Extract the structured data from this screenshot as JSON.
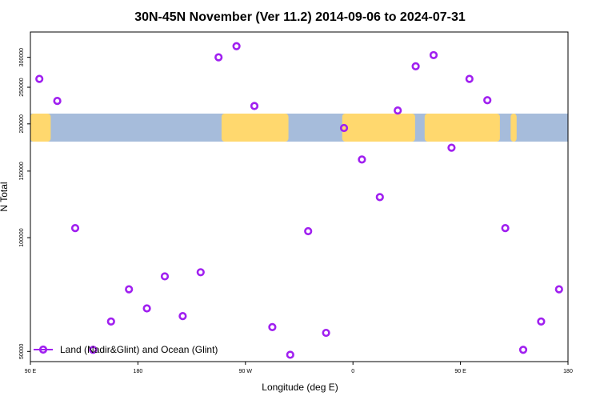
{
  "chart_data": {
    "type": "scatter",
    "title": "30N-45N November (Ver 11.2)   2014-09-06 to 2024-07-31",
    "xlabel": "Longitude (deg E)",
    "ylabel": "N Total",
    "x_ticks": [
      {
        "value": 90,
        "label": "90 E"
      },
      {
        "value": 180,
        "label": "180"
      },
      {
        "value": 270,
        "label": "90 W"
      },
      {
        "value": 360,
        "label": "0"
      },
      {
        "value": 450,
        "label": "90 E"
      },
      {
        "value": 540,
        "label": "180"
      }
    ],
    "xlim": [
      90,
      540
    ],
    "y_scale": "log",
    "y_ticks": [
      50000,
      100000,
      150000,
      200000,
      250000,
      300000
    ],
    "ylim": [
      47000,
      350000
    ],
    "legend": {
      "position": "bottom-left",
      "entries": [
        "Land (Nadir&Glint) and Ocean (Glint)"
      ]
    },
    "background": {
      "type": "world-map-band",
      "lat_range": "30N-45N",
      "land_color": "#ffd86e",
      "ocean_color": "#a6bcdb"
    },
    "colors": {
      "marker": "#a020f0"
    },
    "series": [
      {
        "name": "Land (Nadir&Glint) and Ocean (Glint)",
        "x": [
          97.5,
          112.5,
          127.5,
          142.5,
          157.5,
          172.5,
          187.5,
          202.5,
          217.5,
          232.5,
          247.5,
          262.5,
          277.5,
          292.5,
          307.5,
          322.5,
          337.5,
          352.5,
          367.5,
          382.5,
          397.5,
          412.5,
          427.5,
          442.5,
          457.5,
          472.5,
          487.5,
          502.5,
          517.5,
          532.5
        ],
        "y": [
          263000,
          230000,
          106000,
          50500,
          60000,
          73000,
          65000,
          79000,
          62000,
          81000,
          300000,
          321000,
          223000,
          58000,
          49000,
          104000,
          56000,
          195000,
          161000,
          128000,
          217000,
          284000,
          304000,
          173000,
          263000,
          231000,
          106000,
          50500,
          60000,
          73000
        ]
      }
    ]
  }
}
